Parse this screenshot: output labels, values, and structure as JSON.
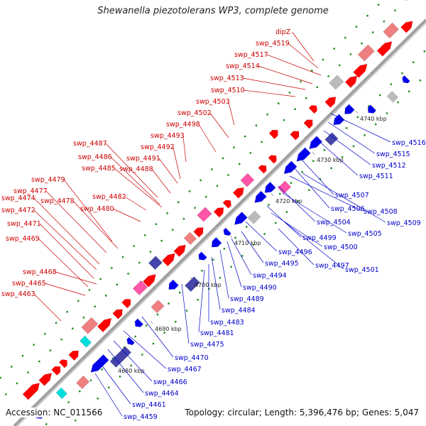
{
  "title": "Shewanella piezotolerans WP3, complete genome",
  "accession": "Accession: NC_011566",
  "summary": "Topology: circular; Length: 5,396,476 bp; Genes: 5,047",
  "colors": {
    "backbone": "#a0a0a0",
    "forward_gene": "#ff0000",
    "reverse_gene": "#0000ee",
    "forward_label": "#cc0000",
    "reverse_label": "#0000cc",
    "tick_dot": "#1a8a1a",
    "kbp_label": "#222222"
  },
  "kbp_labels": [
    "4680 kbp",
    "4690 kbp",
    "4700 kbp",
    "4710 kbp",
    "4720 kbp",
    "4730 kbp",
    "4740 kbp"
  ],
  "forward_labels": [
    "dipZ",
    "swp_4519",
    "swp_4517",
    "swp_4514",
    "swp_4513",
    "swp_4510",
    "swp_4503",
    "swp_4502",
    "swp_4498",
    "swp_4493",
    "swp_4492",
    "swp_4491",
    "swp_4488",
    "swp_4487",
    "swp_4486",
    "swp_4485",
    "swp_4482",
    "swp_4480",
    "swp_4479",
    "swp_4477",
    "swp_4478",
    "swp_4474",
    "swp_4472",
    "swp_4471",
    "swp_4469",
    "swp_4468",
    "swp_4465",
    "swp_4463"
  ],
  "reverse_labels": [
    "swp_4516",
    "swp_4515",
    "swp_4512",
    "swp_4511",
    "swp_4507",
    "swp_4506",
    "swp_4508",
    "swp_4509",
    "swp_4504",
    "swp_4505",
    "swp_4499",
    "swp_4500",
    "swp_4496",
    "swp_4501",
    "swp_4497",
    "swp_4495",
    "swp_4494",
    "swp_4490",
    "swp_4489",
    "swp_4484",
    "swp_4483",
    "swp_4481",
    "swp_4475",
    "swp_4470",
    "swp_4467",
    "swp_4466",
    "swp_4464",
    "swp_4461",
    "swp_4459"
  ]
}
